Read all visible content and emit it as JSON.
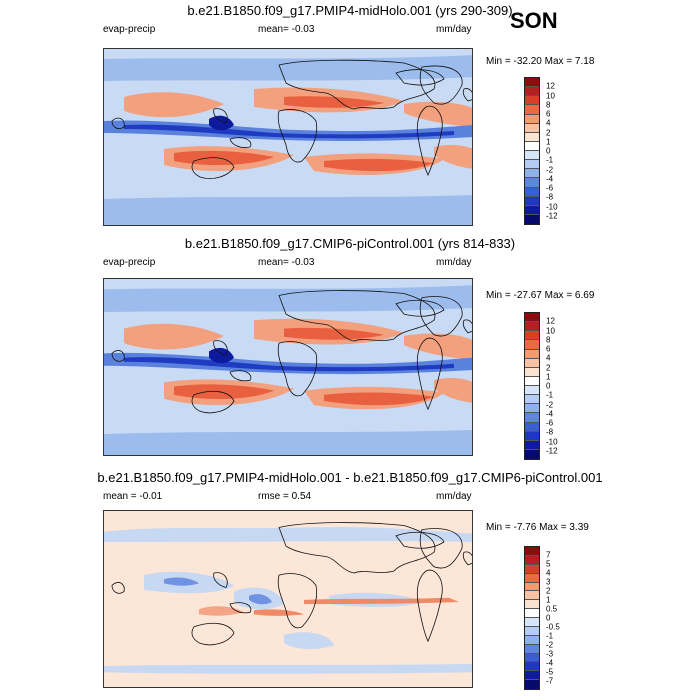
{
  "season": "SON",
  "panels": [
    {
      "title": "b.e21.B1850.f09_g17.PMIP4-midHolo.001 (yrs 290-309)",
      "left_label": "evap-precip",
      "mid_label": "mean=  -0.03",
      "units": "mm/day",
      "minmax": "Min = -32.20 Max =  7.18",
      "levels": [
        "12",
        "10",
        "8",
        "6",
        "4",
        "2",
        "1",
        "0",
        "-1",
        "-2",
        "-4",
        "-6",
        "-8",
        "-10",
        "-12"
      ],
      "colors": [
        "#8b0d0d",
        "#b42020",
        "#d6402b",
        "#eb6a45",
        "#f49a72",
        "#f8c2a4",
        "#fbe3d2",
        "#ffffff",
        "#d7e5f8",
        "#b5cdf2",
        "#8fb1ea",
        "#5f86de",
        "#3a5fd2",
        "#1f38c4",
        "#0e1aa0",
        "#060a6e"
      ],
      "variant": "ctrl"
    },
    {
      "title": "b.e21.B1850.f09_g17.CMIP6-piControl.001 (yrs 814-833)",
      "left_label": "evap-precip",
      "mid_label": "mean=  -0.03",
      "units": "mm/day",
      "minmax": "Min = -27.67 Max =  6.69",
      "levels": [
        "12",
        "10",
        "8",
        "6",
        "4",
        "2",
        "1",
        "0",
        "-1",
        "-2",
        "-4",
        "-6",
        "-8",
        "-10",
        "-12"
      ],
      "colors": [
        "#8b0d0d",
        "#b42020",
        "#d6402b",
        "#eb6a45",
        "#f49a72",
        "#f8c2a4",
        "#fbe3d2",
        "#ffffff",
        "#d7e5f8",
        "#b5cdf2",
        "#8fb1ea",
        "#5f86de",
        "#3a5fd2",
        "#1f38c4",
        "#0e1aa0",
        "#060a6e"
      ],
      "variant": "ctrl"
    },
    {
      "title": "b.e21.B1850.f09_g17.PMIP4-midHolo.001 - b.e21.B1850.f09_g17.CMIP6-piControl.001",
      "left_label": "mean =  -0.01",
      "mid_label": "rmse =  0.54",
      "units": "mm/day",
      "minmax": "Min =  -7.76 Max =  3.39",
      "levels": [
        "7",
        "5",
        "4",
        "3",
        "2",
        "1",
        "0.5",
        "0",
        "-0.5",
        "-1",
        "-2",
        "-3",
        "-4",
        "-5",
        "-7"
      ],
      "colors": [
        "#8b0d0d",
        "#b42020",
        "#d6402b",
        "#eb6a45",
        "#f49a72",
        "#f8c2a4",
        "#fbe3d2",
        "#ffffff",
        "#d7e5f8",
        "#b5cdf2",
        "#8fb1ea",
        "#5f86de",
        "#3a5fd2",
        "#1f38c4",
        "#0e1aa0",
        "#060a6e"
      ],
      "variant": "diff"
    }
  ]
}
